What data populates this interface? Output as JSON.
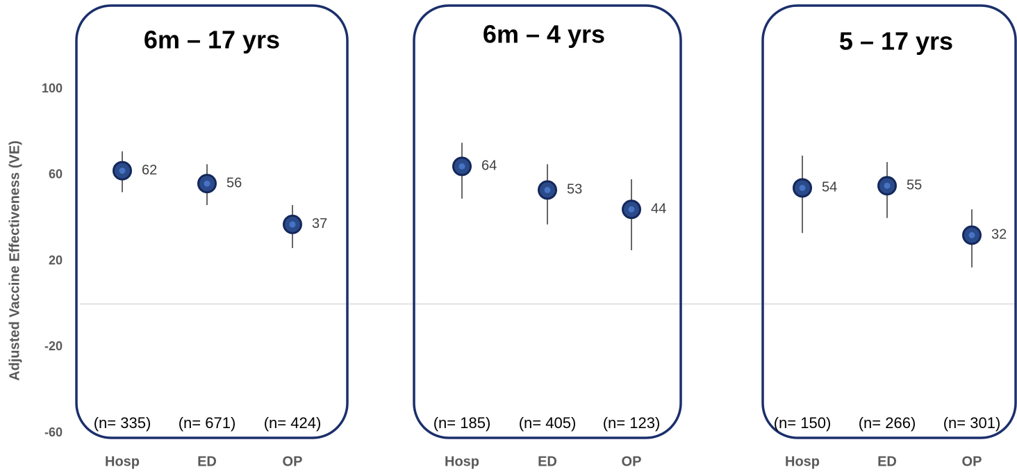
{
  "chart_data": [
    {
      "type": "errorbar",
      "title": "6m – 17 yrs",
      "y_label": "Adjusted Vaccine Effectiveness (VE)",
      "categories": [
        "Hosp",
        "ED",
        "OP"
      ],
      "values": [
        62,
        56,
        37
      ],
      "lower": [
        52,
        46,
        26
      ],
      "upper": [
        71,
        65,
        46
      ],
      "sample_sizes": [
        "(n= 335)",
        "(n= 671)",
        "(n= 424)"
      ],
      "ylim": [
        -60,
        100
      ],
      "yticks": [
        -60,
        -20,
        20,
        60,
        100
      ],
      "color": "#1f3a73"
    },
    {
      "type": "errorbar",
      "title": "6m – 4 yrs",
      "categories": [
        "Hosp",
        "ED",
        "OP"
      ],
      "values": [
        64,
        53,
        44
      ],
      "lower": [
        49,
        37,
        25
      ],
      "upper": [
        75,
        65,
        58
      ],
      "sample_sizes": [
        "(n= 185)",
        "(n= 405)",
        "(n= 123)"
      ],
      "ylim": [
        -60,
        100
      ],
      "color": "#1f3a73"
    },
    {
      "type": "errorbar",
      "title": "5 – 17 yrs",
      "categories": [
        "Hosp",
        "ED",
        "OP"
      ],
      "values": [
        54,
        55,
        32
      ],
      "lower": [
        33,
        40,
        17
      ],
      "upper": [
        69,
        66,
        44
      ],
      "sample_sizes": [
        "(n= 150)",
        "(n= 266)",
        "(n= 301)"
      ],
      "ylim": [
        -60,
        100
      ],
      "color": "#1f3a73"
    }
  ]
}
